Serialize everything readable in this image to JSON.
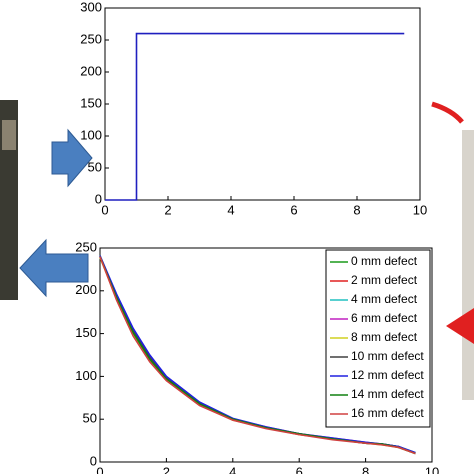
{
  "chart_data": [
    {
      "type": "line",
      "x": [
        0,
        1,
        1,
        9.5
      ],
      "series": [
        {
          "color": "#1f1fbf",
          "values": [
            0,
            0,
            260,
            260
          ]
        }
      ],
      "xlim": [
        0,
        10
      ],
      "ylim": [
        0,
        300
      ],
      "xticks": [
        0,
        2,
        4,
        6,
        8,
        10
      ],
      "yticks": [
        0,
        50,
        100,
        150,
        200,
        250,
        300
      ]
    },
    {
      "type": "line",
      "x": [
        0,
        0.5,
        1,
        1.5,
        2,
        3,
        4,
        5,
        6,
        7,
        8,
        8.5,
        9,
        9.5
      ],
      "series": [
        {
          "name": "0 mm defect",
          "color": "#1a9a1a",
          "values": [
            240,
            192,
            150,
            120,
            97,
            68,
            50,
            40,
            33,
            27,
            22,
            21,
            18,
            10
          ]
        },
        {
          "name": "2 mm defect",
          "color": "#e02020",
          "values": [
            240,
            190,
            148,
            118,
            96,
            67,
            49,
            40,
            32,
            27,
            22,
            21,
            17,
            10
          ]
        },
        {
          "name": "4 mm defect",
          "color": "#20c0c0",
          "values": [
            241,
            193,
            152,
            121,
            98,
            68,
            50,
            40,
            33,
            27,
            22,
            21,
            18,
            11
          ]
        },
        {
          "name": "6 mm defect",
          "color": "#c020c0",
          "values": [
            240,
            195,
            154,
            123,
            99,
            69,
            50,
            41,
            33,
            28,
            23,
            21,
            18,
            10
          ]
        },
        {
          "name": "8 mm defect",
          "color": "#d0d020",
          "values": [
            239,
            191,
            149,
            119,
            96,
            67,
            49,
            40,
            32,
            27,
            22,
            20,
            17,
            10
          ]
        },
        {
          "name": "10 mm defect",
          "color": "#404040",
          "values": [
            240,
            194,
            153,
            122,
            98,
            68,
            50,
            40,
            33,
            27,
            22,
            21,
            18,
            10
          ]
        },
        {
          "name": "12 mm defect",
          "color": "#2020e0",
          "values": [
            241,
            196,
            156,
            125,
            100,
            70,
            51,
            41,
            33,
            28,
            23,
            21,
            18,
            11
          ]
        },
        {
          "name": "14 mm defect",
          "color": "#108010",
          "values": [
            240,
            192,
            151,
            120,
            97,
            68,
            50,
            40,
            33,
            27,
            22,
            21,
            17,
            10
          ]
        },
        {
          "name": "16 mm defect",
          "color": "#d04040",
          "values": [
            240,
            189,
            147,
            117,
            95,
            66,
            49,
            39,
            32,
            26,
            22,
            20,
            17,
            10
          ]
        }
      ],
      "xlim": [
        0,
        10
      ],
      "ylim": [
        0,
        250
      ],
      "xticks": [
        0,
        2,
        4,
        6,
        8,
        10
      ],
      "yticks": [
        0,
        50,
        100,
        150,
        200,
        250
      ],
      "legend": "upper right"
    }
  ]
}
